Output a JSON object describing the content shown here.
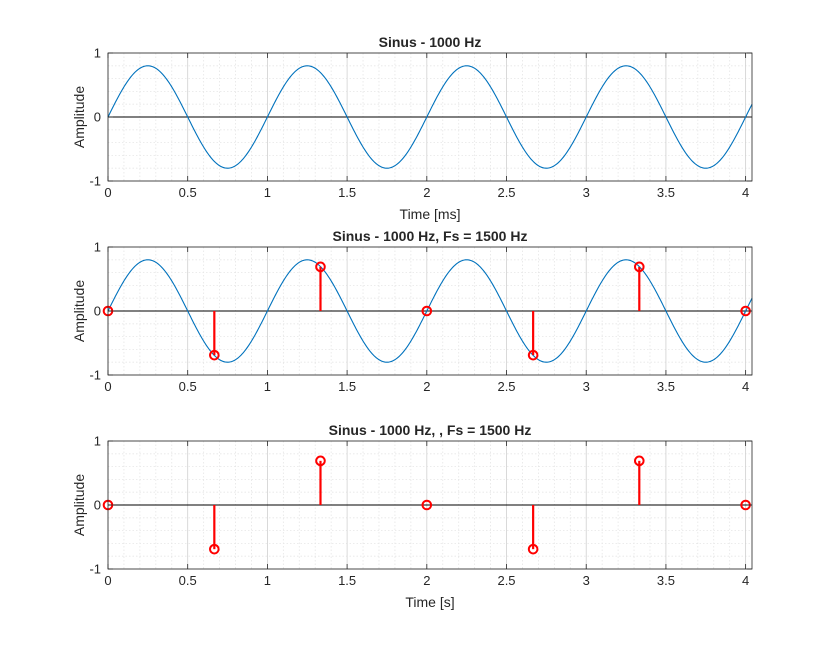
{
  "chart_data": [
    {
      "type": "line",
      "title": "Sinus - 1000 Hz",
      "xlabel": "Time [ms]",
      "ylabel": "Amplitude",
      "xlim": [
        0,
        4.04
      ],
      "ylim": [
        -1,
        1
      ],
      "xticks": [
        "0",
        "0.5",
        "1",
        "1.5",
        "2",
        "2.5",
        "3",
        "3.5",
        "4"
      ],
      "yticks": [
        "-1",
        "0",
        "1"
      ],
      "grid": true,
      "minor_grid": true,
      "series": [
        {
          "kind": "line",
          "function": "sine",
          "amplitude": 0.8,
          "frequency_hz": 1000,
          "x_start": 0,
          "x_end": 4.04,
          "color": "#0072BD"
        }
      ]
    },
    {
      "type": "line",
      "title": "Sinus - 1000 Hz, Fs = 1500 Hz",
      "xlabel": "",
      "ylabel": "Amplitude",
      "xlim": [
        0,
        4.04
      ],
      "ylim": [
        -1,
        1
      ],
      "xticks": [
        "0",
        "0.5",
        "1",
        "1.5",
        "2",
        "2.5",
        "3",
        "3.5",
        "4"
      ],
      "yticks": [
        "-1",
        "0",
        "1"
      ],
      "grid": true,
      "minor_grid": true,
      "series": [
        {
          "kind": "line",
          "function": "sine",
          "amplitude": 0.8,
          "frequency_hz": 1000,
          "x_start": 0,
          "x_end": 4.04,
          "color": "#0072BD"
        },
        {
          "kind": "stem",
          "color": "#FF0000",
          "x": [
            0,
            0.667,
            1.333,
            2,
            2.667,
            3.333,
            4
          ],
          "y": [
            0,
            -0.69,
            0.69,
            0,
            -0.69,
            0.69,
            0
          ]
        }
      ]
    },
    {
      "type": "scatter",
      "title": "Sinus - 1000 Hz, , Fs = 1500 Hz",
      "xlabel": "Time [s]",
      "ylabel": "Amplitude",
      "xlim": [
        0,
        4.04
      ],
      "ylim": [
        -1,
        1
      ],
      "xticks": [
        "0",
        "0.5",
        "1",
        "1.5",
        "2",
        "2.5",
        "3",
        "3.5",
        "4"
      ],
      "yticks": [
        "-1",
        "0",
        "1"
      ],
      "grid": true,
      "minor_grid": true,
      "series": [
        {
          "kind": "stem",
          "color": "#FF0000",
          "x": [
            0,
            0.667,
            1.333,
            2,
            2.667,
            3.333,
            4
          ],
          "y": [
            0,
            -0.69,
            0.69,
            0,
            -0.69,
            0.69,
            0
          ]
        }
      ]
    }
  ]
}
